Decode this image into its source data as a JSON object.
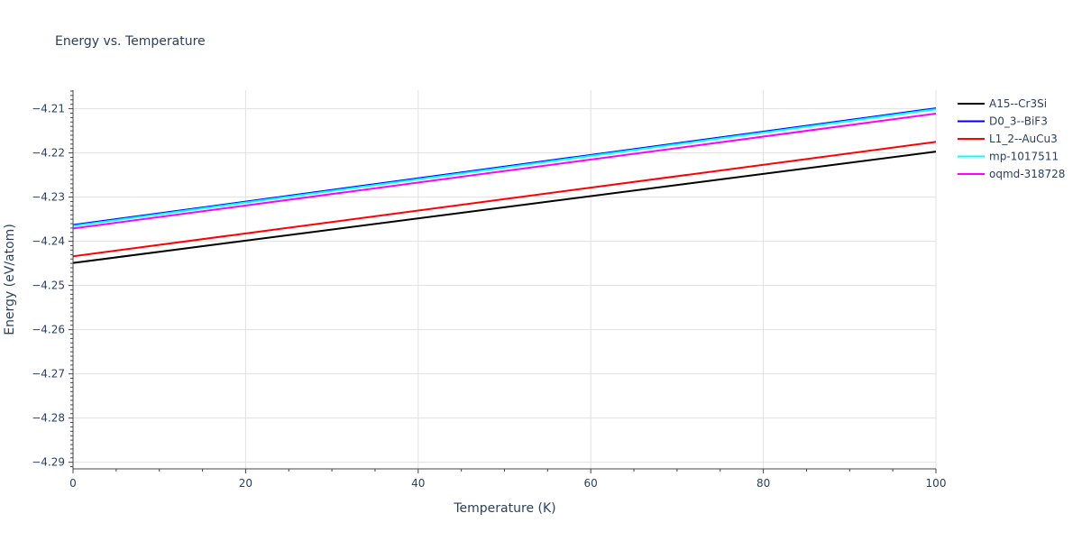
{
  "chart_data": {
    "type": "line",
    "title": "Energy vs. Temperature",
    "xlabel": "Temperature (K)",
    "ylabel": "Energy (eV/atom)",
    "xlim": [
      0,
      100
    ],
    "ylim": [
      -4.2915,
      -4.2058
    ],
    "x_ticks": [
      0,
      20,
      40,
      60,
      80,
      100
    ],
    "y_ticks": [
      -4.29,
      -4.28,
      -4.27,
      -4.26,
      -4.25,
      -4.24,
      -4.23,
      -4.22,
      -4.21
    ],
    "x_tick_labels": [
      "0",
      "20",
      "40",
      "60",
      "80",
      "100"
    ],
    "y_tick_labels": [
      "−4.29",
      "−4.28",
      "−4.27",
      "−4.26",
      "−4.25",
      "−4.24",
      "−4.23",
      "−4.22",
      "−4.21"
    ],
    "grid": true,
    "legend_position": "top-right",
    "series": [
      {
        "name": "A15--Cr3Si",
        "color": "#000000",
        "x": [
          0,
          100
        ],
        "y": [
          -4.2449,
          -4.2197
        ]
      },
      {
        "name": "D0_3--BiF3",
        "color": "#0000ff",
        "x": [
          0,
          100
        ],
        "y": [
          -4.2363,
          -4.2099
        ]
      },
      {
        "name": "L1_2--AuCu3",
        "color": "#ff0000",
        "x": [
          0,
          100
        ],
        "y": [
          -4.2434,
          -4.2175
        ]
      },
      {
        "name": "mp-1017511",
        "color": "#00ffff",
        "x": [
          0,
          100
        ],
        "y": [
          -4.2365,
          -4.2101
        ]
      },
      {
        "name": "oqmd-318728",
        "color": "#ff00ff",
        "x": [
          0,
          100
        ],
        "y": [
          -4.2371,
          -4.2111
        ]
      }
    ]
  }
}
